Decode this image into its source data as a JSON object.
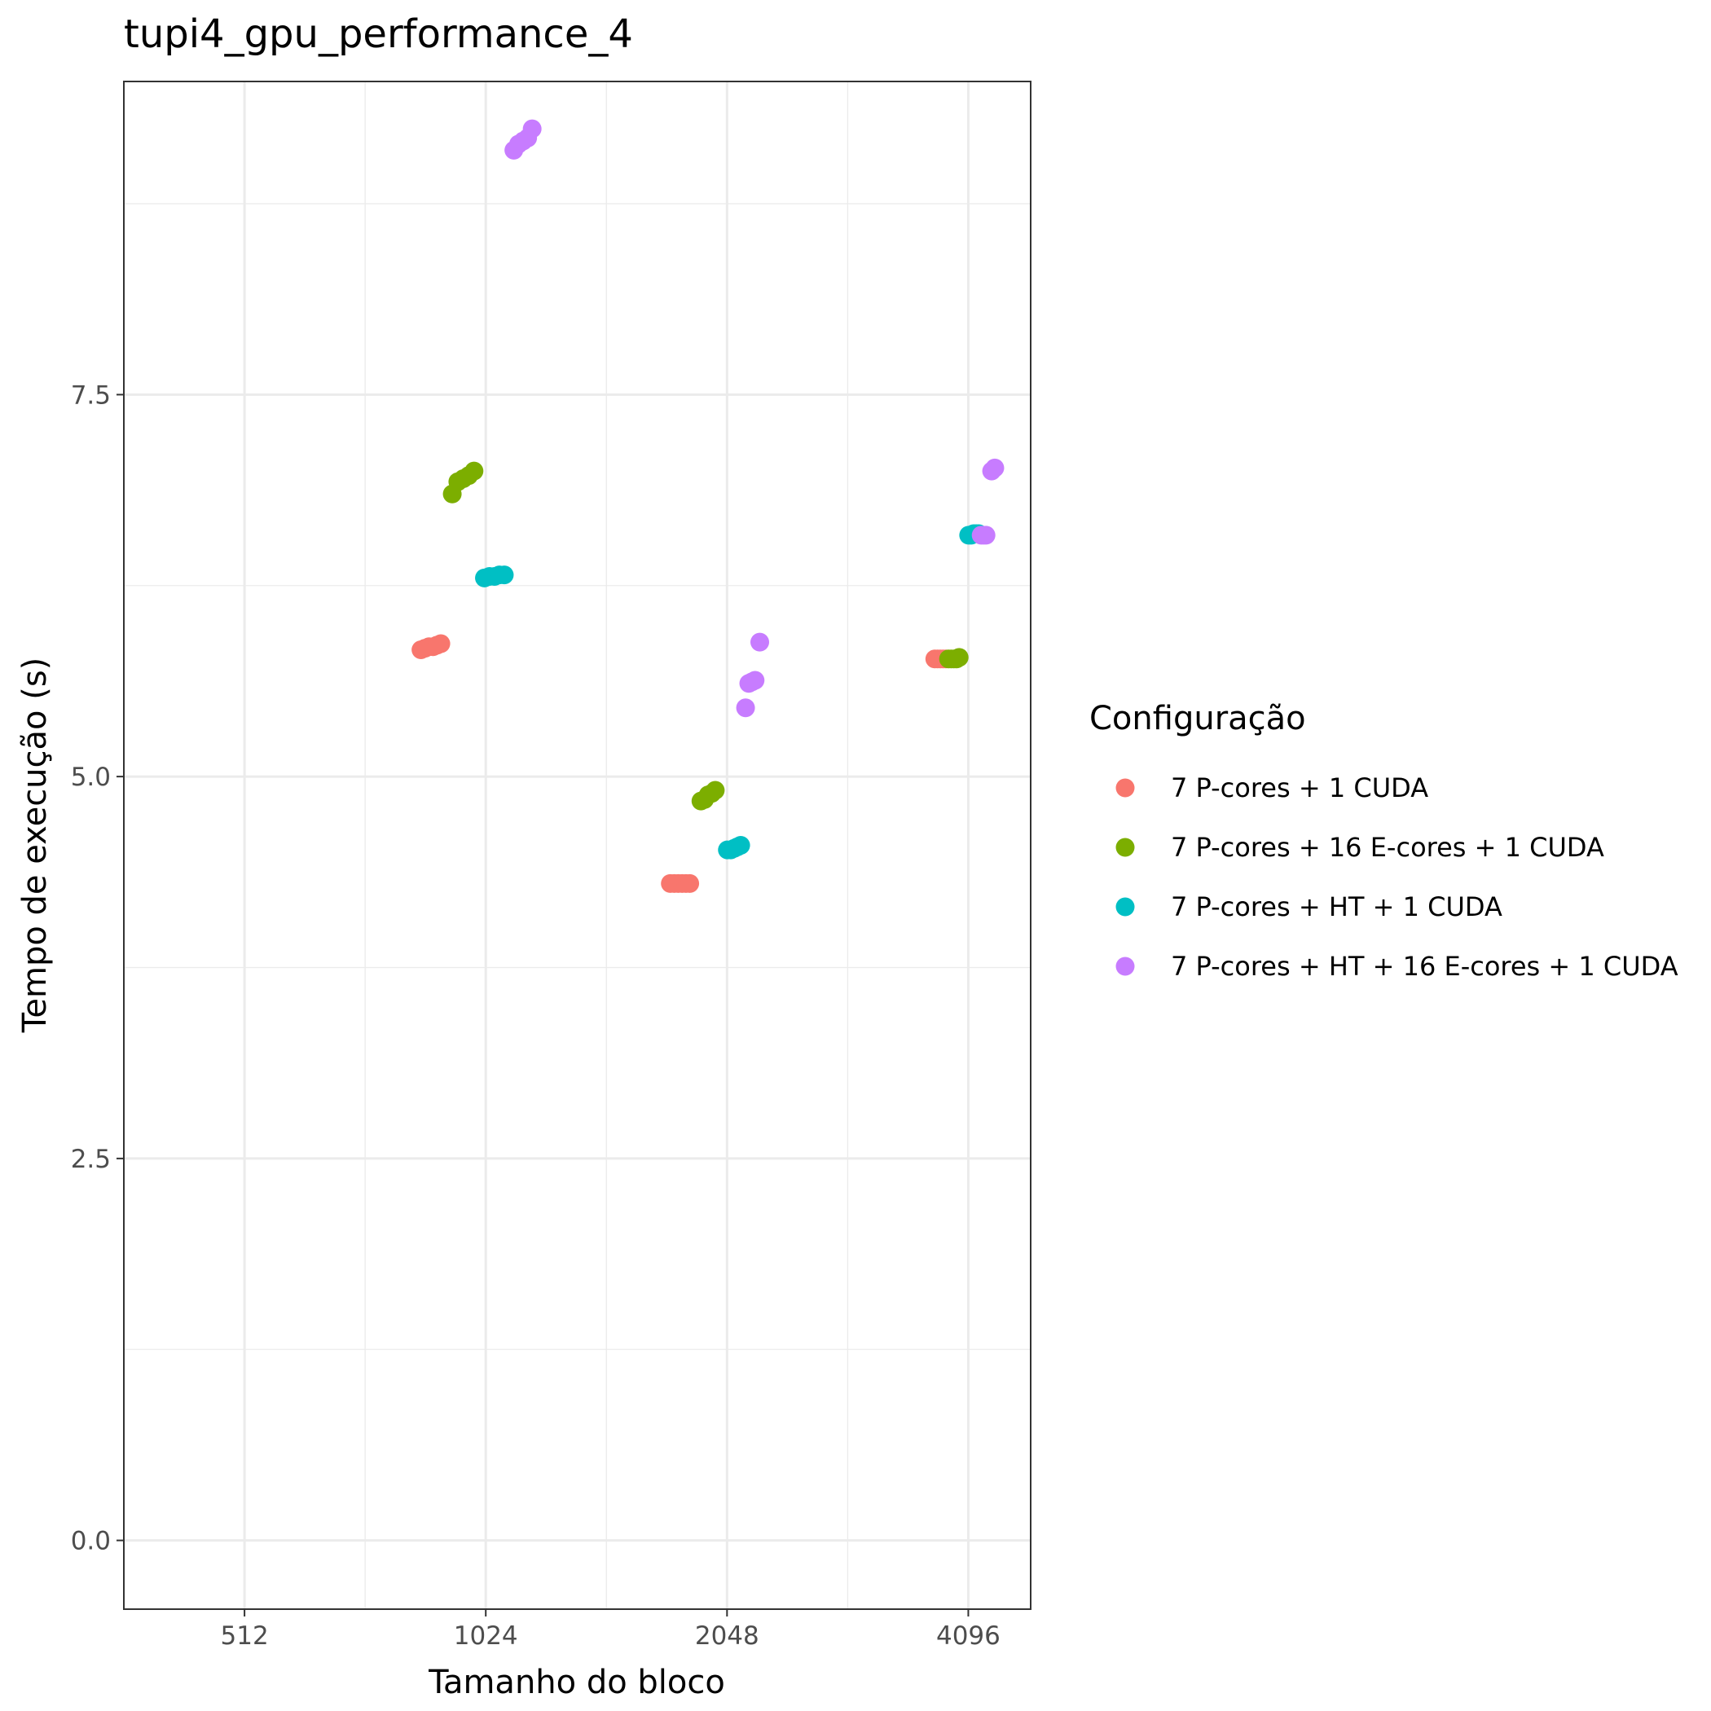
{
  "chart_data": {
    "type": "scatter",
    "title": "tupi4_gpu_performance_4",
    "xlabel": "Tamanho do bloco",
    "ylabel": "Tempo de execução (s)",
    "xscale": "log2",
    "xlim": [
      362,
      4900
    ],
    "ylim": [
      -0.45,
      9.55
    ],
    "x_ticks": [
      512,
      1024,
      2048,
      4096
    ],
    "x_tick_labels": [
      "512",
      "1024",
      "2048",
      "4096"
    ],
    "y_ticks": [
      0,
      2.5,
      5,
      7.5
    ],
    "y_tick_labels": [
      "0.0",
      "2.5",
      "5.0",
      "7.5"
    ],
    "grid": true,
    "legend": {
      "title": "Configuração",
      "position": "right"
    },
    "series": [
      {
        "name": "7 P-cores + 1 CUDA",
        "color": "#F8766D",
        "points": [
          {
            "x": 850,
            "y": 5.83
          },
          {
            "x": 860,
            "y": 5.84
          },
          {
            "x": 870,
            "y": 5.85
          },
          {
            "x": 880,
            "y": 5.85
          },
          {
            "x": 890,
            "y": 5.86
          },
          {
            "x": 900,
            "y": 5.87
          },
          {
            "x": 1740,
            "y": 4.3
          },
          {
            "x": 1760,
            "y": 4.3
          },
          {
            "x": 1780,
            "y": 4.3
          },
          {
            "x": 1800,
            "y": 4.3
          },
          {
            "x": 1820,
            "y": 4.3
          },
          {
            "x": 1840,
            "y": 4.3
          },
          {
            "x": 3720,
            "y": 5.77
          },
          {
            "x": 3750,
            "y": 5.77
          },
          {
            "x": 3780,
            "y": 5.77
          },
          {
            "x": 3810,
            "y": 5.77
          },
          {
            "x": 3840,
            "y": 5.77
          }
        ]
      },
      {
        "name": "7 P-cores + 16 E-cores + 1 CUDA",
        "color": "#7CAE00",
        "points": [
          {
            "x": 930,
            "y": 6.85
          },
          {
            "x": 945,
            "y": 6.93
          },
          {
            "x": 960,
            "y": 6.95
          },
          {
            "x": 975,
            "y": 6.97
          },
          {
            "x": 990,
            "y": 7.0
          },
          {
            "x": 1900,
            "y": 4.84
          },
          {
            "x": 1920,
            "y": 4.85
          },
          {
            "x": 1940,
            "y": 4.88
          },
          {
            "x": 1960,
            "y": 4.89
          },
          {
            "x": 1980,
            "y": 4.91
          },
          {
            "x": 3870,
            "y": 5.77
          },
          {
            "x": 3900,
            "y": 5.77
          },
          {
            "x": 3930,
            "y": 5.77
          },
          {
            "x": 3960,
            "y": 5.77
          },
          {
            "x": 3990,
            "y": 5.78
          }
        ]
      },
      {
        "name": "7 P-cores + HT + 1 CUDA",
        "color": "#00BFC4",
        "points": [
          {
            "x": 1020,
            "y": 6.3
          },
          {
            "x": 1035,
            "y": 6.31
          },
          {
            "x": 1050,
            "y": 6.31
          },
          {
            "x": 1065,
            "y": 6.32
          },
          {
            "x": 1080,
            "y": 6.32
          },
          {
            "x": 2050,
            "y": 4.52
          },
          {
            "x": 2070,
            "y": 4.52
          },
          {
            "x": 2090,
            "y": 4.53
          },
          {
            "x": 2110,
            "y": 4.54
          },
          {
            "x": 2130,
            "y": 4.55
          },
          {
            "x": 4100,
            "y": 6.58
          },
          {
            "x": 4130,
            "y": 6.58
          },
          {
            "x": 4160,
            "y": 6.59
          },
          {
            "x": 4190,
            "y": 6.59
          },
          {
            "x": 4220,
            "y": 6.59
          }
        ]
      },
      {
        "name": "7 P-cores + HT + 16 E-cores + 1 CUDA",
        "color": "#C77CFF",
        "points": [
          {
            "x": 1110,
            "y": 9.1
          },
          {
            "x": 1125,
            "y": 9.14
          },
          {
            "x": 1140,
            "y": 9.16
          },
          {
            "x": 1155,
            "y": 9.18
          },
          {
            "x": 1170,
            "y": 9.24
          },
          {
            "x": 2160,
            "y": 5.45
          },
          {
            "x": 2180,
            "y": 5.61
          },
          {
            "x": 2200,
            "y": 5.62
          },
          {
            "x": 2220,
            "y": 5.63
          },
          {
            "x": 2250,
            "y": 5.88
          },
          {
            "x": 4250,
            "y": 6.58
          },
          {
            "x": 4280,
            "y": 6.58
          },
          {
            "x": 4310,
            "y": 6.58
          },
          {
            "x": 4380,
            "y": 7.0
          },
          {
            "x": 4420,
            "y": 7.02
          }
        ]
      }
    ]
  }
}
